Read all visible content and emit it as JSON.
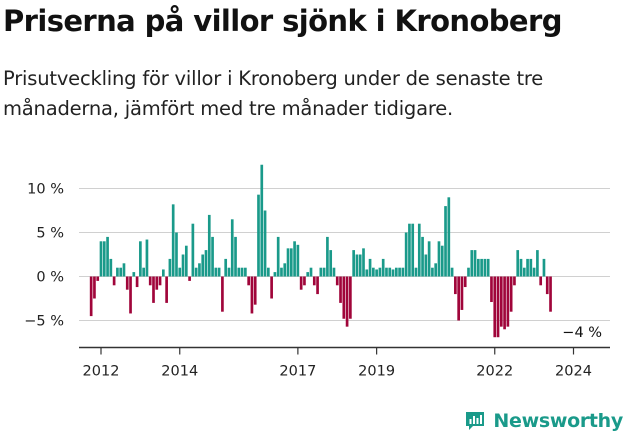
{
  "title": "Priserna på villor sjönk i Kronoberg",
  "subtitle": "Prisutveckling för villor i Kronoberg under de senaste tre månaderna, jämfört med tre månader tidigare.",
  "brand": {
    "name": "Newsworthy",
    "icon": "newsworthy-logo-icon"
  },
  "colors": {
    "positive": "#1a9a8a",
    "negative": "#a0053a",
    "grid": "#d0d0d0",
    "axis": "#333333"
  },
  "chart_data": {
    "type": "bar",
    "x_start": "2011-10",
    "x_end": "2024-03",
    "ylim": [
      -8,
      13
    ],
    "yticks": [
      {
        "value": 10,
        "label": "10 %"
      },
      {
        "value": 5,
        "label": "5 %"
      },
      {
        "value": 0,
        "label": "0 %"
      },
      {
        "value": -5,
        "label": "−5 %"
      }
    ],
    "xticks": [
      {
        "date": "2012-01",
        "label": "2012"
      },
      {
        "date": "2014-01",
        "label": "2014"
      },
      {
        "date": "2017-01",
        "label": "2017"
      },
      {
        "date": "2019-01",
        "label": "2019"
      },
      {
        "date": "2022-01",
        "label": "2022"
      },
      {
        "date": "2024-01",
        "label": "2024"
      }
    ],
    "annotation": {
      "label": "−4 %",
      "date": "2024-03"
    },
    "values": [
      -4.5,
      -2.5,
      -0.5,
      4,
      4,
      4.5,
      2,
      -1,
      1,
      1,
      1.5,
      -1.5,
      -4.2,
      0.5,
      -1.2,
      4,
      1,
      4.2,
      -1,
      -3,
      -1.5,
      -1,
      0.8,
      -3,
      2,
      8.2,
      5,
      1,
      2.5,
      3.5,
      -0.5,
      6,
      1,
      1.5,
      2.5,
      3,
      7,
      4.5,
      1,
      1,
      -4,
      2,
      1,
      6.5,
      4.5,
      1,
      1,
      1,
      -1,
      -4.2,
      -3.2,
      9.3,
      12.7,
      7.5,
      1,
      -2.5,
      0.5,
      4.5,
      1,
      1.5,
      3.2,
      3.2,
      4,
      3.6,
      -1.5,
      -1,
      0.5,
      1,
      -1,
      -2,
      1,
      1,
      4.5,
      3,
      1,
      -1,
      -3,
      -4.8,
      -5.7,
      -4.8,
      3,
      2.5,
      2.5,
      3.2,
      0.8,
      2,
      1,
      0.8,
      1,
      2,
      1,
      1,
      0.8,
      1,
      1,
      1,
      5,
      6,
      6,
      1,
      6,
      4.5,
      2.5,
      4,
      1,
      1.5,
      4,
      3.5,
      8,
      9,
      1,
      -2,
      -5,
      -3.8,
      -1.2,
      1,
      3,
      3,
      2,
      2,
      2,
      2,
      -2.9,
      -6.9,
      -6.9,
      -5.7,
      -6,
      -5.7,
      -4,
      -1,
      3,
      2,
      1,
      2,
      2,
      1,
      3,
      -1,
      2,
      -2,
      -4
    ]
  }
}
